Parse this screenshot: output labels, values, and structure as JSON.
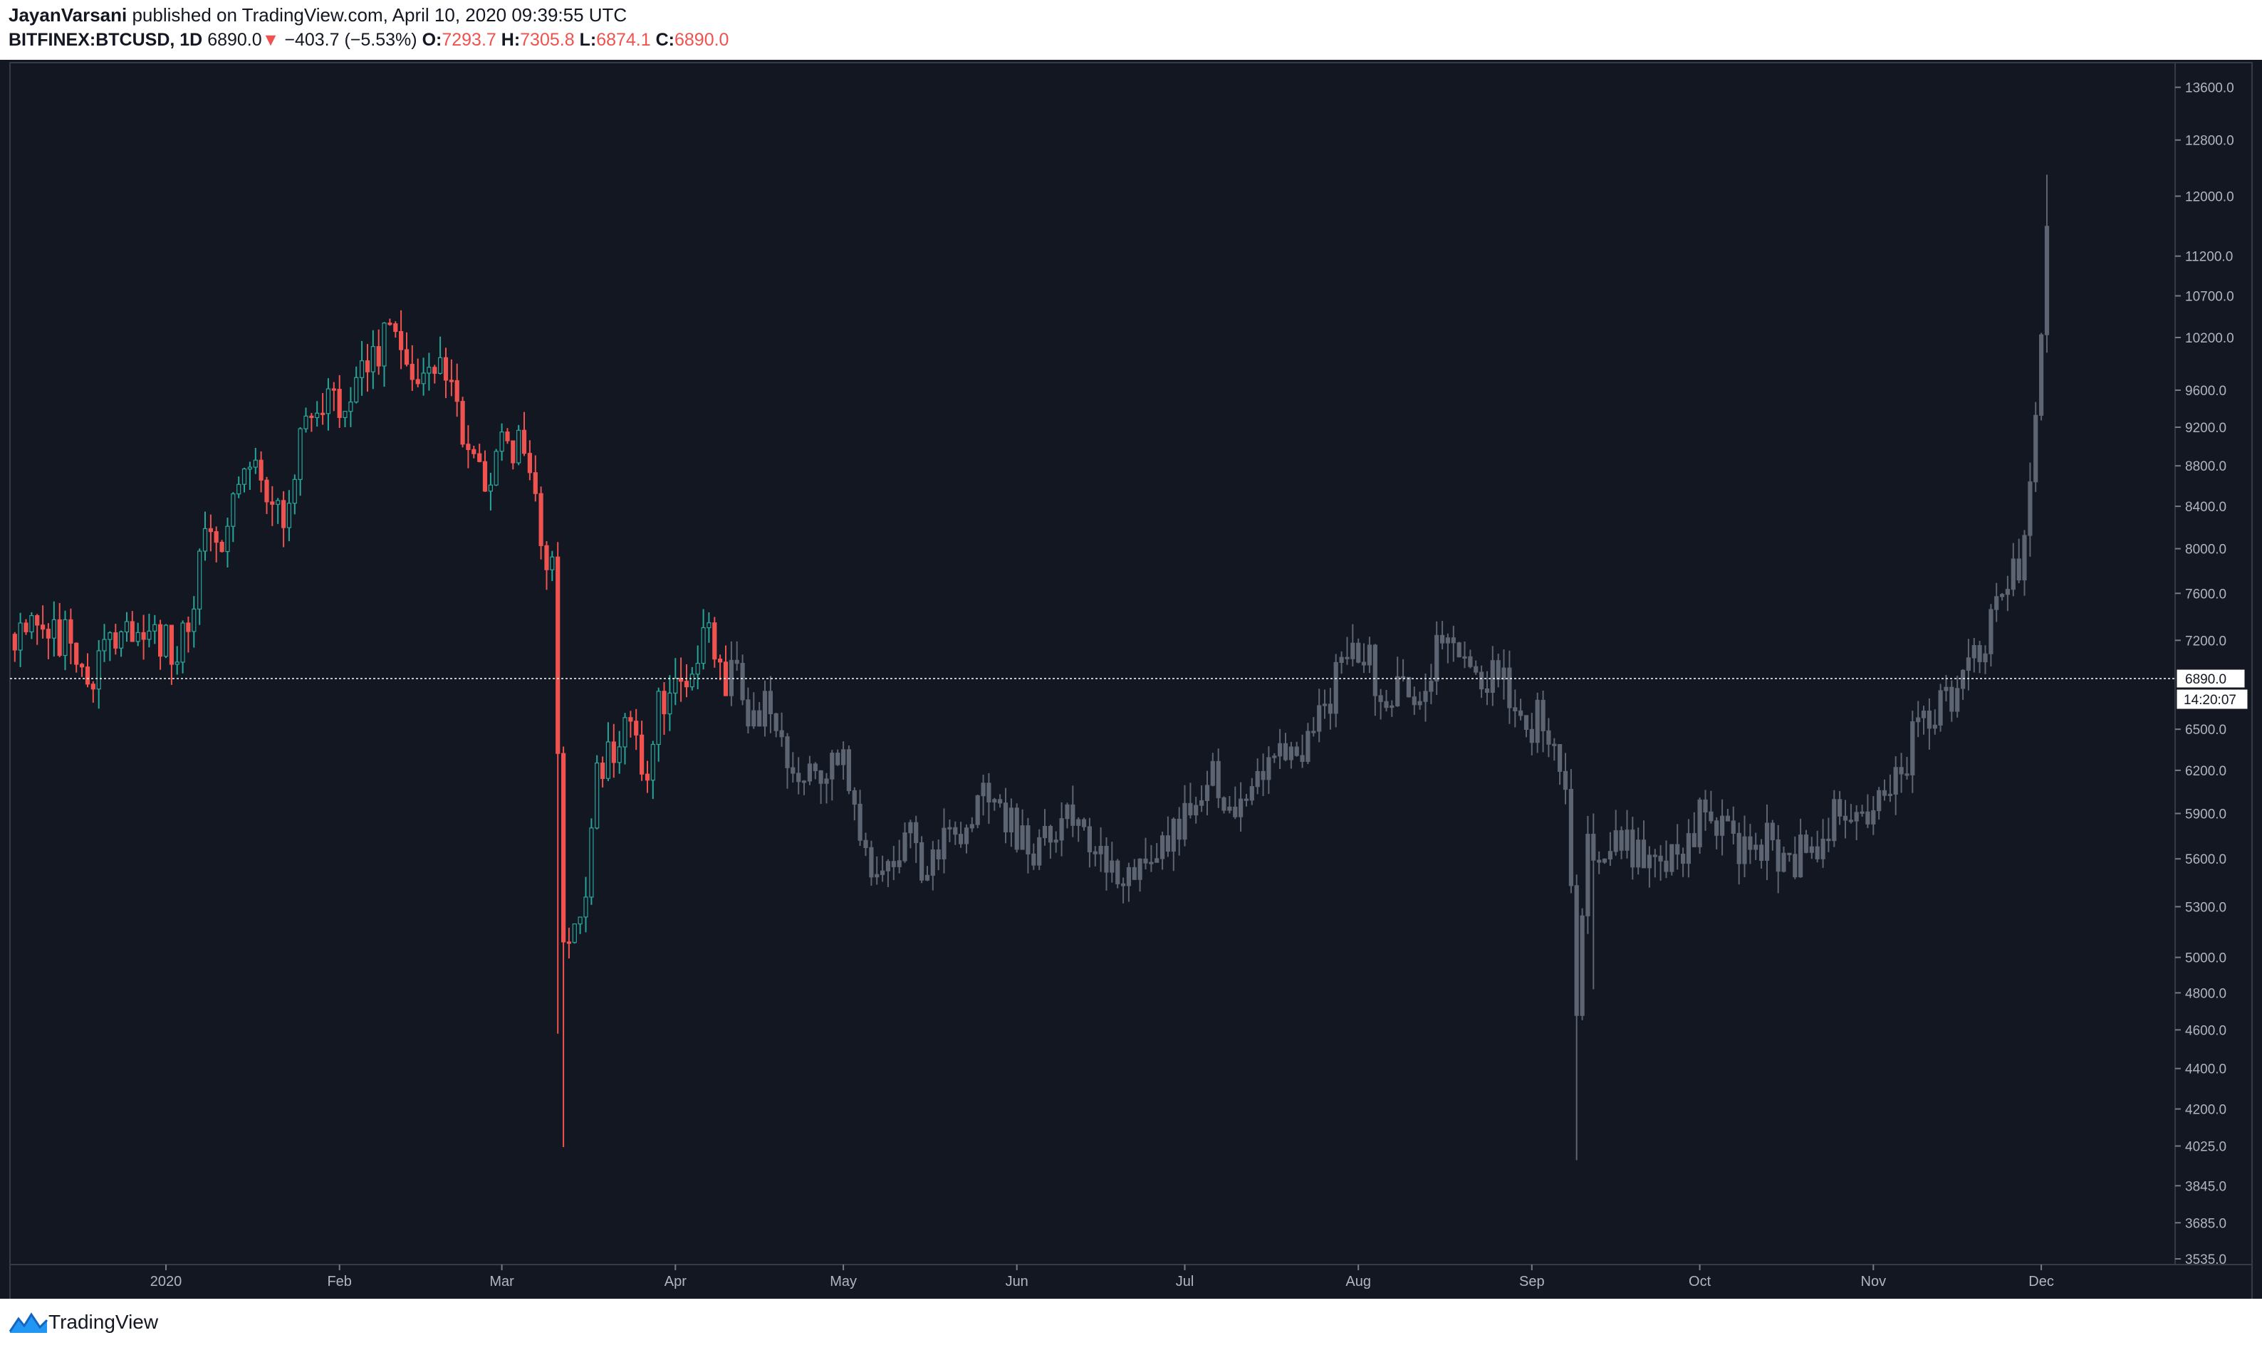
{
  "header": {
    "author": "JayanVarsani",
    "published_text": "published on TradingView.com, April 10, 2020 09:39:55 UTC",
    "symbol": "BITFINEX:BTCUSD, 1D",
    "last": "6890.0",
    "arrow": "▼",
    "change": "−403.7 (−5.53%)",
    "o_label": "O:",
    "o_value": "7293.7",
    "h_label": "H:",
    "h_value": "7305.8",
    "l_label": "L:",
    "l_value": "6874.1",
    "c_label": "C:",
    "c_value": "6890.0"
  },
  "footer": {
    "brand": "TradingView"
  },
  "colors": {
    "background": "#131722",
    "up": "#26a69a",
    "down": "#ef5350",
    "ghost": "#5d6573",
    "axis_text": "#b2b5be",
    "price_line": "#ffffff"
  },
  "chart_data": {
    "type": "candlestick",
    "symbol": "BITFINEX:BTCUSD",
    "interval": "1D",
    "scale": "log",
    "ylim": [
      3535,
      13900
    ],
    "y_ticks": [
      3535.0,
      3685.0,
      3845.0,
      4025.0,
      4200.0,
      4400.0,
      4600.0,
      4800.0,
      5000.0,
      5300.0,
      5600.0,
      5900.0,
      6200.0,
      6500.0,
      6890.0,
      7200.0,
      7600.0,
      8000.0,
      8400.0,
      8800.0,
      9200.0,
      9600.0,
      10200.0,
      10700.0,
      11200.0,
      12000.0,
      12800.0,
      13600.0
    ],
    "x_ticks": [
      "2020",
      "Feb",
      "Mar",
      "Apr",
      "May",
      "Jun",
      "Jul",
      "Aug",
      "Sep",
      "Oct",
      "Nov",
      "Dec"
    ],
    "x_tick_days": [
      0,
      31,
      60,
      91,
      121,
      152,
      182,
      213,
      244,
      274,
      305,
      335
    ],
    "start_day": -27,
    "end_day": 100,
    "ghost_start_day": 101,
    "ghost_end_day": 336,
    "last_price": 6890.0,
    "last_price_label": "6890.0",
    "countdown": "14:20:07",
    "anchors": [
      [
        -27,
        7250
      ],
      [
        -24,
        7500
      ],
      [
        -21,
        7300
      ],
      [
        -18,
        7200
      ],
      [
        -15,
        7000
      ],
      [
        -13,
        6850
      ],
      [
        -10,
        7300
      ],
      [
        -6,
        7350
      ],
      [
        -3,
        7200
      ],
      [
        0,
        7200
      ],
      [
        2,
        7000
      ],
      [
        4,
        7400
      ],
      [
        7,
        8000
      ],
      [
        10,
        8100
      ],
      [
        13,
        8800
      ],
      [
        16,
        8700
      ],
      [
        19,
        8500
      ],
      [
        22,
        8350
      ],
      [
        25,
        9300
      ],
      [
        27,
        9500
      ],
      [
        31,
        9350
      ],
      [
        35,
        9800
      ],
      [
        38,
        10100
      ],
      [
        41,
        10300
      ],
      [
        43,
        9900
      ],
      [
        46,
        9700
      ],
      [
        49,
        10100
      ],
      [
        52,
        9600
      ],
      [
        54,
        8900
      ],
      [
        57,
        8700
      ],
      [
        60,
        8950
      ],
      [
        63,
        9100
      ],
      [
        65,
        8800
      ],
      [
        67,
        8000
      ],
      [
        69,
        7900
      ],
      [
        71,
        5000
      ],
      [
        72,
        5200
      ],
      [
        75,
        5400
      ],
      [
        77,
        6200
      ],
      [
        80,
        6400
      ],
      [
        83,
        6700
      ],
      [
        86,
        6100
      ],
      [
        88,
        6700
      ],
      [
        91,
        6800
      ],
      [
        94,
        7000
      ],
      [
        96,
        7250
      ],
      [
        98,
        7200
      ],
      [
        100,
        6890
      ],
      [
        102,
        7000
      ],
      [
        104,
        6400
      ],
      [
        107,
        6700
      ],
      [
        110,
        6300
      ],
      [
        113,
        6100
      ],
      [
        117,
        6200
      ],
      [
        121,
        6300
      ],
      [
        124,
        5800
      ],
      [
        127,
        5500
      ],
      [
        130,
        5600
      ],
      [
        133,
        5700
      ],
      [
        136,
        5500
      ],
      [
        139,
        5700
      ],
      [
        142,
        5800
      ],
      [
        145,
        6000
      ],
      [
        148,
        5900
      ],
      [
        152,
        5800
      ],
      [
        155,
        5700
      ],
      [
        158,
        5800
      ],
      [
        162,
        5900
      ],
      [
        166,
        5750
      ],
      [
        170,
        5500
      ],
      [
        174,
        5500
      ],
      [
        178,
        5700
      ],
      [
        182,
        5900
      ],
      [
        186,
        6200
      ],
      [
        190,
        5900
      ],
      [
        194,
        6000
      ],
      [
        198,
        6200
      ],
      [
        203,
        6400
      ],
      [
        207,
        6600
      ],
      [
        210,
        7000
      ],
      [
        213,
        7200
      ],
      [
        216,
        6900
      ],
      [
        219,
        6800
      ],
      [
        222,
        6800
      ],
      [
        225,
        6900
      ],
      [
        228,
        7200
      ],
      [
        231,
        7100
      ],
      [
        234,
        6950
      ],
      [
        237,
        6900
      ],
      [
        240,
        6800
      ],
      [
        242,
        6500
      ],
      [
        245,
        6600
      ],
      [
        248,
        6400
      ],
      [
        250,
        6100
      ],
      [
        252,
        4700
      ],
      [
        254,
        5700
      ],
      [
        257,
        5600
      ],
      [
        260,
        5700
      ],
      [
        263,
        5600
      ],
      [
        266,
        5700
      ],
      [
        270,
        5600
      ],
      [
        274,
        5900
      ],
      [
        278,
        5750
      ],
      [
        282,
        5650
      ],
      [
        286,
        5700
      ],
      [
        290,
        5600
      ],
      [
        294,
        5700
      ],
      [
        298,
        5850
      ],
      [
        302,
        5900
      ],
      [
        305,
        6000
      ],
      [
        309,
        6150
      ],
      [
        312,
        6400
      ],
      [
        315,
        6600
      ],
      [
        318,
        6700
      ],
      [
        321,
        6900
      ],
      [
        324,
        7100
      ],
      [
        327,
        7450
      ],
      [
        330,
        7800
      ],
      [
        332,
        8000
      ],
      [
        333,
        8500
      ],
      [
        334,
        9200
      ],
      [
        335,
        10000
      ],
      [
        336,
        11500
      ]
    ],
    "spikes": [
      {
        "day": 71,
        "low": 4020
      },
      {
        "day": 70,
        "low": 4580
      },
      {
        "day": 252,
        "low": 3960
      },
      {
        "day": 255,
        "low": 4820
      },
      {
        "day": 336,
        "high": 12300
      }
    ]
  }
}
